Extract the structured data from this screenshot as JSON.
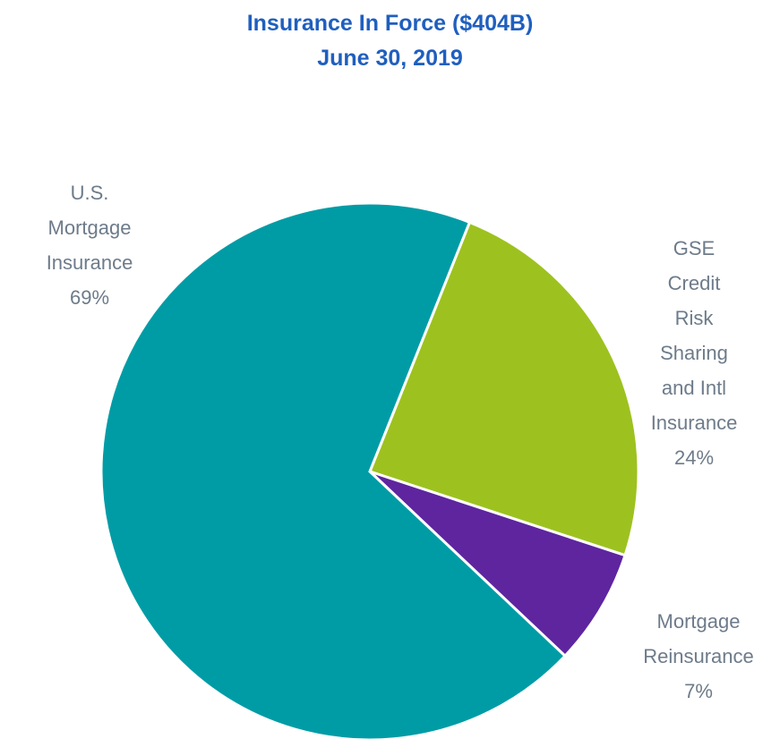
{
  "chart_data": {
    "type": "pie",
    "title": "Insurance In Force ($404B)",
    "subtitle": "June 30, 2019",
    "categories": [
      "GSE Credit\nRisk Sharing\nand Intl\nInsurance",
      "Mortgage\nReinsurance",
      "U.S.\nMortgage\nInsurance"
    ],
    "values": [
      24,
      7,
      69
    ],
    "value_labels": [
      "24%",
      "7%",
      "69%"
    ],
    "colors": [
      "#9dc21f",
      "#5e259f",
      "#009ca6"
    ]
  }
}
